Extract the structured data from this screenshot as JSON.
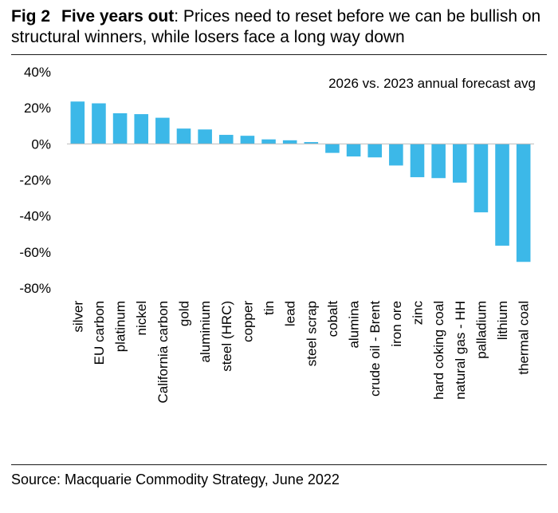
{
  "figure": {
    "fig_label": "Fig 2",
    "title_bold": "Five years out",
    "title_rest": ": Prices need to reset before we can be bullish on structural winners, while losers face a long way down",
    "source": "Source: Macquarie Commodity Strategy, June 2022"
  },
  "chart_data": {
    "type": "bar",
    "annotation": "2026 vs. 2023 annual forecast avg",
    "categories": [
      "silver",
      "EU carbon",
      "platinum",
      "nickel",
      "California carbon",
      "gold",
      "aluminium",
      "steel (HRC)",
      "copper",
      "tin",
      "lead",
      "steel scrap",
      "cobalt",
      "alumina",
      "crude oil - Brent",
      "iron ore",
      "zinc",
      "hard coking coal",
      "natural gas - HH",
      "palladium",
      "lithium",
      "thermal coal"
    ],
    "values": [
      23.5,
      22.5,
      17,
      16.5,
      14.5,
      8.5,
      8,
      5,
      4.5,
      2.5,
      2,
      1,
      -5,
      -7,
      -7.5,
      -12,
      -18.5,
      -19,
      -21.5,
      -38,
      -56.5,
      -65.5
    ],
    "unit": "%",
    "ylim": [
      -80,
      40
    ],
    "yticks": [
      40,
      20,
      0,
      -20,
      -40,
      -60,
      -80
    ],
    "ytick_labels": [
      "40%",
      "20%",
      "0%",
      "-20%",
      "-40%",
      "-60%",
      "-80%"
    ],
    "bar_color": "#3cb8e8",
    "grid": false,
    "legend": "none"
  }
}
